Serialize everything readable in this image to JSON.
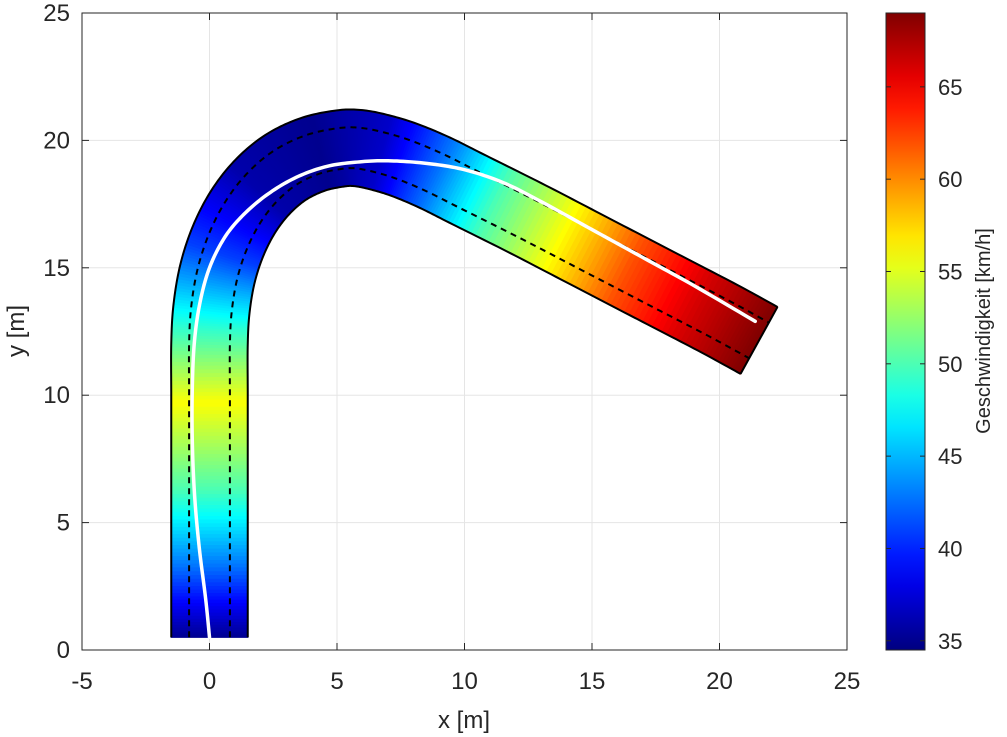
{
  "chart_data": {
    "type": "heatmap",
    "xlabel": "x [m]",
    "ylabel": "y [m]",
    "xlim": [
      -5,
      25
    ],
    "ylim": [
      0,
      25
    ],
    "xticks": [
      -5,
      0,
      5,
      10,
      15,
      20,
      25
    ],
    "yticks": [
      0,
      5,
      10,
      15,
      20,
      25
    ],
    "grid": true,
    "road_width_m": 3.0,
    "lane_offset_m": 0.8,
    "road_centerline": [
      [
        0,
        0.5
      ],
      [
        0,
        2
      ],
      [
        0,
        4
      ],
      [
        0,
        6
      ],
      [
        0,
        8
      ],
      [
        0,
        10
      ],
      [
        0,
        12
      ],
      [
        0.08,
        13.4
      ],
      [
        0.32,
        14.8
      ],
      [
        0.75,
        16.1
      ],
      [
        1.35,
        17.25
      ],
      [
        2.1,
        18.2
      ],
      [
        3.0,
        18.95
      ],
      [
        4.05,
        19.45
      ],
      [
        5.1,
        19.68
      ],
      [
        5.8,
        19.7
      ],
      [
        6.6,
        19.55
      ],
      [
        7.6,
        19.25
      ],
      [
        8.8,
        18.75
      ],
      [
        10.2,
        18.05
      ],
      [
        12.5,
        16.9
      ],
      [
        15.0,
        15.6
      ],
      [
        17.5,
        14.3
      ],
      [
        20.0,
        13.0
      ],
      [
        21.55,
        12.15
      ]
    ],
    "vehicle_path": [
      [
        0.0,
        0.5
      ],
      [
        -0.15,
        2.0
      ],
      [
        -0.4,
        4.0
      ],
      [
        -0.58,
        6.0
      ],
      [
        -0.67,
        8.0
      ],
      [
        -0.68,
        10.0
      ],
      [
        -0.6,
        12.0
      ],
      [
        -0.38,
        13.6
      ],
      [
        0.0,
        15.0
      ],
      [
        0.6,
        16.2
      ],
      [
        1.35,
        17.1
      ],
      [
        2.3,
        17.9
      ],
      [
        3.4,
        18.55
      ],
      [
        4.6,
        18.98
      ],
      [
        5.8,
        19.15
      ],
      [
        7.0,
        19.2
      ],
      [
        8.5,
        19.1
      ],
      [
        10.0,
        18.85
      ],
      [
        11.5,
        18.35
      ],
      [
        13.0,
        17.6
      ],
      [
        15.0,
        16.5
      ],
      [
        17.0,
        15.4
      ],
      [
        19.0,
        14.3
      ],
      [
        21.4,
        12.9
      ]
    ],
    "speed_profile_kmh": [
      {
        "s": 0.0,
        "v": 35
      },
      {
        "s": 3.0,
        "v": 43
      },
      {
        "s": 6.0,
        "v": 50
      },
      {
        "s": 9.5,
        "v": 56
      },
      {
        "s": 12.5,
        "v": 49
      },
      {
        "s": 15.5,
        "v": 41
      },
      {
        "s": 18.5,
        "v": 36
      },
      {
        "s": 21.5,
        "v": 35
      },
      {
        "s": 24.0,
        "v": 37
      },
      {
        "s": 26.5,
        "v": 43
      },
      {
        "s": 29.0,
        "v": 50
      },
      {
        "s": 32.0,
        "v": 56
      },
      {
        "s": 35.0,
        "v": 62
      },
      {
        "s": 38.0,
        "v": 66
      },
      {
        "s": 41.0,
        "v": 69
      }
    ],
    "colorbar": {
      "label": "Geschwindigkeit [km/h]",
      "min": 34.5,
      "max": 69,
      "ticks": [
        35,
        40,
        45,
        50,
        55,
        60,
        65
      ],
      "colormap": "jet"
    },
    "colors": {
      "road_edge": "#000000",
      "lane_line": "#000000",
      "vehicle_path": "#ffffff",
      "grid": "#e5e5e5",
      "axis": "#262626"
    }
  }
}
